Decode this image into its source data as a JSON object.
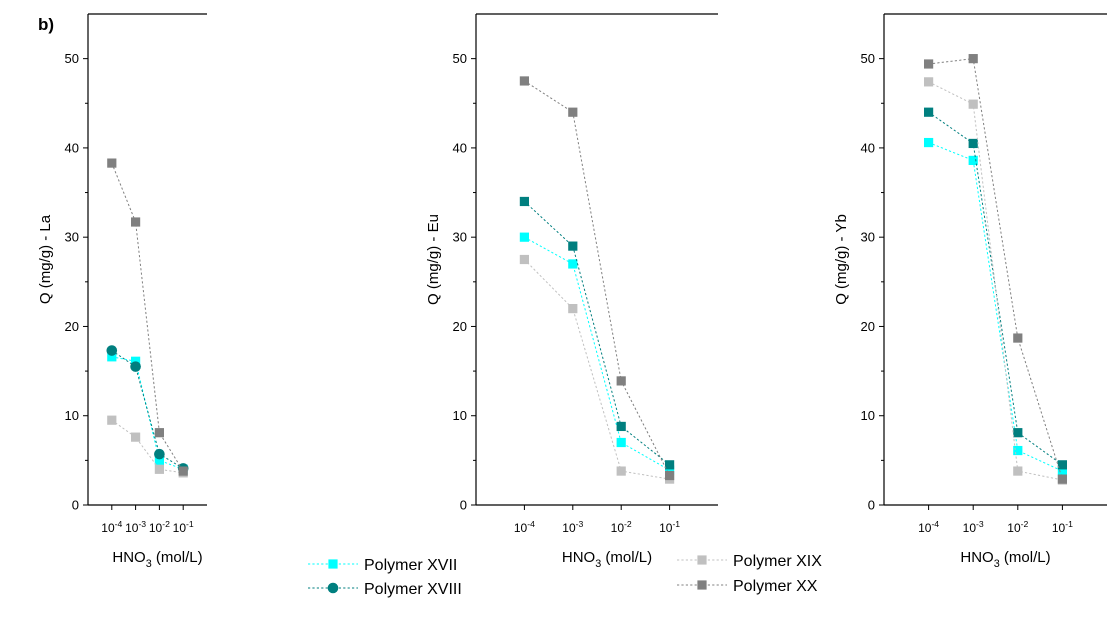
{
  "panel_label": "b)",
  "legend": [
    {
      "name": "Polymer XVII",
      "color": "#00ffff",
      "marker": "square"
    },
    {
      "name": "Polymer XVIII",
      "color": "#007f7f",
      "marker": "circle"
    },
    {
      "name": "Polymer XIX",
      "color": "#c0c0c0",
      "marker": "square"
    },
    {
      "name": "Polymer XX",
      "color": "#808080",
      "marker": "square"
    }
  ],
  "chart_data": [
    {
      "type": "line",
      "title": "",
      "xlabel": "HNO3 (mol/L)",
      "ylabel": "Q (mg/g) - La",
      "categories": [
        "10-4",
        "10-3",
        "10-2",
        "10-1"
      ],
      "ylim": [
        0,
        55
      ],
      "yticks": [
        0,
        10,
        20,
        30,
        40,
        50
      ],
      "series": [
        {
          "name": "Polymer XVII",
          "color": "#00ffff",
          "marker": "square",
          "values": [
            16.6,
            16.1,
            5.0,
            4.0
          ]
        },
        {
          "name": "Polymer XVIII",
          "color": "#007f7f",
          "marker": "circle",
          "values": [
            17.3,
            15.5,
            5.7,
            4.1
          ]
        },
        {
          "name": "Polymer XIX",
          "color": "#c0c0c0",
          "marker": "square",
          "values": [
            9.5,
            7.6,
            4.0,
            3.6
          ]
        },
        {
          "name": "Polymer XX",
          "color": "#808080",
          "marker": "square",
          "values": [
            38.3,
            31.7,
            8.1,
            3.8
          ]
        }
      ]
    },
    {
      "type": "line",
      "title": "",
      "xlabel": "HNO3 (mol/L)",
      "ylabel": "Q (mg/g) - Eu",
      "categories": [
        "10-4",
        "10-3",
        "10-2",
        "10-1"
      ],
      "ylim": [
        0,
        55
      ],
      "yticks": [
        0,
        10,
        20,
        30,
        40,
        50
      ],
      "series": [
        {
          "name": "Polymer XVII",
          "color": "#00ffff",
          "marker": "square",
          "values": [
            30.0,
            27.0,
            7.0,
            3.9
          ]
        },
        {
          "name": "Polymer XVIII",
          "color": "#007f7f",
          "marker": "square",
          "values": [
            34.0,
            29.0,
            8.8,
            4.5
          ]
        },
        {
          "name": "Polymer XIX",
          "color": "#c0c0c0",
          "marker": "square",
          "values": [
            27.5,
            22.0,
            3.8,
            2.9
          ]
        },
        {
          "name": "Polymer XX",
          "color": "#808080",
          "marker": "square",
          "values": [
            47.5,
            44.0,
            13.9,
            3.3
          ]
        }
      ]
    },
    {
      "type": "line",
      "title": "",
      "xlabel": "HNO3 (mol/L)",
      "ylabel": "Q (mg/g) - Yb",
      "categories": [
        "10-4",
        "10-3",
        "10-2",
        "10-1"
      ],
      "ylim": [
        0,
        55
      ],
      "yticks": [
        0,
        10,
        20,
        30,
        40,
        50
      ],
      "series": [
        {
          "name": "Polymer XVII",
          "color": "#00ffff",
          "marker": "square",
          "values": [
            40.6,
            38.6,
            6.1,
            3.8
          ]
        },
        {
          "name": "Polymer XVIII",
          "color": "#007f7f",
          "marker": "square",
          "values": [
            44.0,
            40.5,
            8.1,
            4.5
          ]
        },
        {
          "name": "Polymer XIX",
          "color": "#c0c0c0",
          "marker": "square",
          "values": [
            47.4,
            44.9,
            3.8,
            2.8
          ]
        },
        {
          "name": "Polymer XX",
          "color": "#808080",
          "marker": "square",
          "values": [
            49.4,
            50.0,
            18.7,
            2.9
          ]
        }
      ]
    }
  ]
}
